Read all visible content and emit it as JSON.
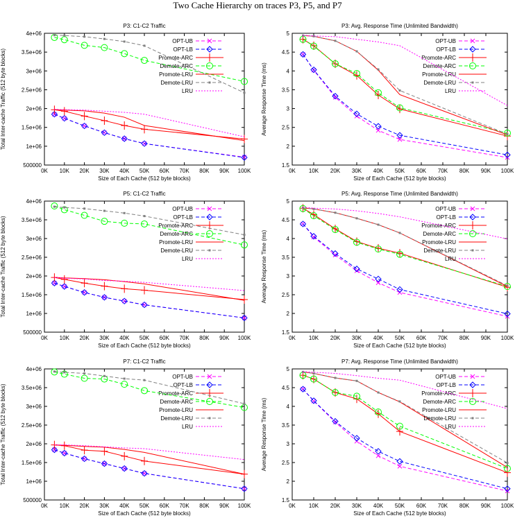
{
  "title": "Two Cache Hierarchy on traces P3, P5, and P7",
  "chart_data": [
    {
      "type": "line",
      "title": "P3: C1-C2 Traffic",
      "xlabel": "Size of Each Cache (512 byte blocks)",
      "ylabel": "Total Inter-cache Traffic (512 byte blocks)",
      "x": [
        5000,
        10000,
        20000,
        30000,
        40000,
        50000,
        100000
      ],
      "xlim": [
        0,
        100000
      ],
      "ylim": [
        500000,
        4000000
      ],
      "xticks": [
        0,
        10000,
        20000,
        30000,
        40000,
        50000,
        60000,
        70000,
        80000,
        90000,
        100000
      ],
      "xtick_labels": [
        "0K",
        "10K",
        "20K",
        "30K",
        "40K",
        "50K",
        "60K",
        "70K",
        "80K",
        "90K",
        "100K"
      ],
      "yticks": [
        500000,
        1000000,
        1500000,
        2000000,
        2500000,
        3000000,
        3500000,
        4000000
      ],
      "ytick_labels": [
        "500000",
        "1e+06",
        "1.5e+06",
        "2e+06",
        "2.5e+06",
        "3e+06",
        "3.5e+06",
        "4e+06"
      ],
      "legend": "top-right",
      "grid": false,
      "series": [
        {
          "name": "OPT-UB",
          "values": [
            1850000,
            1740000,
            1540000,
            1360000,
            1200000,
            1070000,
            710000
          ]
        },
        {
          "name": "OPT-LB",
          "values": [
            1850000,
            1740000,
            1540000,
            1360000,
            1200000,
            1070000,
            700000
          ]
        },
        {
          "name": "Promote-ARC",
          "values": [
            1970000,
            1930000,
            1800000,
            1680000,
            1550000,
            1450000,
            1190000
          ]
        },
        {
          "name": "Demote-ARC",
          "values": [
            3890000,
            3830000,
            3680000,
            3620000,
            3460000,
            3280000,
            2720000
          ]
        },
        {
          "name": "Promote-LRU",
          "values": [
            1970000,
            1960000,
            1940000,
            1880000,
            1770000,
            1550000,
            1150000
          ]
        },
        {
          "name": "Demote-LRU",
          "values": [
            3950000,
            3940000,
            3910000,
            3850000,
            3780000,
            3670000,
            2420000
          ]
        },
        {
          "name": "LRU",
          "values": [
            1980000,
            1970000,
            1960000,
            1930000,
            1900000,
            1850000,
            1250000
          ]
        }
      ]
    },
    {
      "type": "line",
      "title": "P3: Avg. Response Time (Unlimited Bandwidth)",
      "xlabel": "Size of Each Cache (512 byte blocks)",
      "ylabel": "Average Response Time (ms)",
      "x": [
        5000,
        10000,
        20000,
        30000,
        40000,
        50000,
        100000
      ],
      "xlim": [
        0,
        100000
      ],
      "ylim": [
        1.5,
        5
      ],
      "xticks": [
        0,
        10000,
        20000,
        30000,
        40000,
        50000,
        60000,
        70000,
        80000,
        90000,
        100000
      ],
      "xtick_labels": [
        "0K",
        "10K",
        "20K",
        "30K",
        "40K",
        "50K",
        "60K",
        "70K",
        "80K",
        "90K",
        "100K"
      ],
      "yticks": [
        1.5,
        2,
        2.5,
        3,
        3.5,
        4,
        4.5,
        5
      ],
      "ytick_labels": [
        "1.5",
        "2",
        "2.5",
        "3",
        "3.5",
        "4",
        "4.5",
        "5"
      ],
      "legend": "top-right",
      "grid": false,
      "series": [
        {
          "name": "OPT-UB",
          "values": [
            4.44,
            4.02,
            3.3,
            2.8,
            2.42,
            2.18,
            1.7
          ]
        },
        {
          "name": "OPT-LB",
          "values": [
            4.44,
            4.03,
            3.33,
            2.86,
            2.53,
            2.29,
            1.77
          ]
        },
        {
          "name": "Promote-ARC",
          "values": [
            4.84,
            4.67,
            4.19,
            3.88,
            3.36,
            2.99,
            2.27
          ]
        },
        {
          "name": "Demote-ARC",
          "values": [
            4.84,
            4.66,
            4.19,
            3.93,
            3.42,
            3.02,
            2.35
          ]
        },
        {
          "name": "Promote-LRU",
          "values": [
            4.94,
            4.92,
            4.8,
            4.52,
            4.02,
            3.37,
            2.3
          ]
        },
        {
          "name": "Demote-LRU",
          "values": [
            4.94,
            4.92,
            4.8,
            4.52,
            4.04,
            3.48,
            2.32
          ]
        },
        {
          "name": "LRU",
          "values": [
            4.95,
            4.93,
            4.91,
            4.84,
            4.77,
            4.67,
            3.08
          ]
        }
      ]
    },
    {
      "type": "line",
      "title": "P5: C1-C2 Traffic",
      "xlabel": "Size of Each Cache (512 byte blocks)",
      "ylabel": "Total Inter-cache Traffic (512 byte blocks)",
      "x": [
        5000,
        10000,
        20000,
        30000,
        40000,
        50000,
        100000
      ],
      "xlim": [
        0,
        100000
      ],
      "ylim": [
        500000,
        4000000
      ],
      "xticks": [
        0,
        10000,
        20000,
        30000,
        40000,
        50000,
        60000,
        70000,
        80000,
        90000,
        100000
      ],
      "xtick_labels": [
        "0K",
        "10K",
        "20K",
        "30K",
        "40K",
        "50K",
        "60K",
        "70K",
        "80K",
        "90K",
        "100K"
      ],
      "yticks": [
        500000,
        1000000,
        1500000,
        2000000,
        2500000,
        3000000,
        3500000,
        4000000
      ],
      "ytick_labels": [
        "500000",
        "1e+06",
        "1.5e+06",
        "2e+06",
        "2.5e+06",
        "3e+06",
        "3.5e+06",
        "4e+06"
      ],
      "legend": "top-right",
      "grid": false,
      "series": [
        {
          "name": "OPT-UB",
          "values": [
            1810000,
            1720000,
            1560000,
            1430000,
            1330000,
            1230000,
            880000
          ]
        },
        {
          "name": "OPT-LB",
          "values": [
            1810000,
            1720000,
            1560000,
            1430000,
            1330000,
            1230000,
            880000
          ]
        },
        {
          "name": "Promote-ARC",
          "values": [
            1960000,
            1910000,
            1810000,
            1730000,
            1660000,
            1620000,
            1370000
          ]
        },
        {
          "name": "Demote-ARC",
          "values": [
            3870000,
            3770000,
            3620000,
            3460000,
            3410000,
            3390000,
            2830000
          ]
        },
        {
          "name": "Promote-LRU",
          "values": [
            1960000,
            1950000,
            1930000,
            1900000,
            1850000,
            1790000,
            1350000
          ]
        },
        {
          "name": "Demote-LRU",
          "values": [
            3850000,
            3830000,
            3800000,
            3740000,
            3680000,
            3600000,
            3100000
          ]
        },
        {
          "name": "LRU",
          "values": [
            1960000,
            1940000,
            1920000,
            1880000,
            1860000,
            1830000,
            1610000
          ]
        }
      ]
    },
    {
      "type": "line",
      "title": "P5: Avg. Response Time (Unlimited Bandwidth)",
      "xlabel": "Size of Each Cache (512 byte blocks)",
      "ylabel": "Average Response Time (ms)",
      "x": [
        5000,
        10000,
        20000,
        30000,
        40000,
        50000,
        100000
      ],
      "xlim": [
        0,
        100000
      ],
      "ylim": [
        1.5,
        5
      ],
      "xticks": [
        0,
        10000,
        20000,
        30000,
        40000,
        50000,
        60000,
        70000,
        80000,
        90000,
        100000
      ],
      "xtick_labels": [
        "0K",
        "10K",
        "20K",
        "30K",
        "40K",
        "50K",
        "60K",
        "70K",
        "80K",
        "90K",
        "100K"
      ],
      "yticks": [
        1.5,
        2,
        2.5,
        3,
        3.5,
        4,
        4.5,
        5
      ],
      "ytick_labels": [
        "1.5",
        "2",
        "2.5",
        "3",
        "3.5",
        "4",
        "4.5",
        "5"
      ],
      "legend": "top-right",
      "grid": false,
      "series": [
        {
          "name": "OPT-UB",
          "values": [
            4.39,
            4.04,
            3.56,
            3.14,
            2.82,
            2.56,
            1.92
          ]
        },
        {
          "name": "OPT-LB",
          "values": [
            4.39,
            4.06,
            3.6,
            3.19,
            2.92,
            2.64,
            1.99
          ]
        },
        {
          "name": "Promote-ARC",
          "values": [
            4.81,
            4.64,
            4.26,
            3.92,
            3.74,
            3.61,
            2.7
          ]
        },
        {
          "name": "Demote-ARC",
          "values": [
            4.8,
            4.61,
            4.24,
            3.9,
            3.72,
            3.58,
            2.72
          ]
        },
        {
          "name": "Promote-LRU",
          "values": [
            4.82,
            4.79,
            4.69,
            4.54,
            4.37,
            4.15,
            2.72
          ]
        },
        {
          "name": "Demote-LRU",
          "values": [
            4.82,
            4.79,
            4.69,
            4.54,
            4.37,
            4.15,
            2.74
          ]
        },
        {
          "name": "LRU",
          "values": [
            4.84,
            4.81,
            4.79,
            4.74,
            4.67,
            4.58,
            3.99
          ]
        }
      ]
    },
    {
      "type": "line",
      "title": "P7: C1-C2 Traffic",
      "xlabel": "Size of Each Cache (512 byte blocks)",
      "ylabel": "Total Inter-cache Traffic (512 byte blocks)",
      "x": [
        5000,
        10000,
        20000,
        30000,
        40000,
        50000,
        100000
      ],
      "xlim": [
        0,
        100000
      ],
      "ylim": [
        500000,
        4000000
      ],
      "xticks": [
        0,
        10000,
        20000,
        30000,
        40000,
        50000,
        60000,
        70000,
        80000,
        90000,
        100000
      ],
      "xtick_labels": [
        "0K",
        "10K",
        "20K",
        "30K",
        "40K",
        "50K",
        "60K",
        "70K",
        "80K",
        "90K",
        "100K"
      ],
      "yticks": [
        500000,
        1000000,
        1500000,
        2000000,
        2500000,
        3000000,
        3500000,
        4000000
      ],
      "ytick_labels": [
        "500000",
        "1e+06",
        "1.5e+06",
        "2e+06",
        "2.5e+06",
        "3e+06",
        "3.5e+06",
        "4e+06"
      ],
      "legend": "top-right",
      "grid": false,
      "series": [
        {
          "name": "OPT-UB",
          "values": [
            1840000,
            1750000,
            1600000,
            1470000,
            1340000,
            1210000,
            800000
          ]
        },
        {
          "name": "OPT-LB",
          "values": [
            1840000,
            1750000,
            1600000,
            1470000,
            1340000,
            1210000,
            800000
          ]
        },
        {
          "name": "Promote-ARC",
          "values": [
            1970000,
            1950000,
            1830000,
            1800000,
            1670000,
            1540000,
            1190000
          ]
        },
        {
          "name": "Demote-ARC",
          "values": [
            3920000,
            3860000,
            3750000,
            3730000,
            3590000,
            3420000,
            2970000
          ]
        },
        {
          "name": "Promote-LRU",
          "values": [
            1970000,
            1960000,
            1930000,
            1910000,
            1850000,
            1770000,
            1190000
          ]
        },
        {
          "name": "Demote-LRU",
          "values": [
            3930000,
            3910000,
            3880000,
            3810000,
            3740000,
            3700000,
            3070000
          ]
        },
        {
          "name": "LRU",
          "values": [
            1970000,
            1970000,
            1950000,
            1920000,
            1890000,
            1870000,
            1580000
          ]
        }
      ]
    },
    {
      "type": "line",
      "title": "P7: Avg. Response Time (Unlimited Bandwidth)",
      "xlabel": "Size of Each Cache (512 byte blocks)",
      "ylabel": "Average Response Time (ms)",
      "x": [
        5000,
        10000,
        20000,
        30000,
        40000,
        50000,
        100000
      ],
      "xlim": [
        0,
        100000
      ],
      "ylim": [
        1.5,
        5
      ],
      "xticks": [
        0,
        10000,
        20000,
        30000,
        40000,
        50000,
        60000,
        70000,
        80000,
        90000,
        100000
      ],
      "xtick_labels": [
        "0K",
        "10K",
        "20K",
        "30K",
        "40K",
        "50K",
        "60K",
        "70K",
        "80K",
        "90K",
        "100K"
      ],
      "yticks": [
        1.5,
        2,
        2.5,
        3,
        3.5,
        4,
        4.5,
        5
      ],
      "ytick_labels": [
        "1.5",
        "2",
        "2.5",
        "3",
        "3.5",
        "4",
        "4.5",
        "5"
      ],
      "legend": "top-right",
      "grid": false,
      "series": [
        {
          "name": "OPT-UB",
          "values": [
            4.46,
            4.14,
            3.58,
            3.07,
            2.68,
            2.4,
            1.74
          ]
        },
        {
          "name": "OPT-LB",
          "values": [
            4.46,
            4.15,
            3.6,
            3.15,
            2.8,
            2.53,
            1.8
          ]
        },
        {
          "name": "Promote-ARC",
          "values": [
            4.83,
            4.73,
            4.37,
            4.2,
            3.8,
            3.33,
            2.23
          ]
        },
        {
          "name": "Demote-ARC",
          "values": [
            4.83,
            4.73,
            4.37,
            4.27,
            3.85,
            3.47,
            2.34
          ]
        },
        {
          "name": "Promote-LRU",
          "values": [
            4.92,
            4.88,
            4.76,
            4.68,
            4.37,
            4.12,
            2.37
          ]
        },
        {
          "name": "Demote-LRU",
          "values": [
            4.92,
            4.88,
            4.76,
            4.68,
            4.37,
            4.13,
            2.49
          ]
        },
        {
          "name": "LRU",
          "values": [
            4.93,
            4.91,
            4.88,
            4.82,
            4.75,
            4.7,
            3.94
          ]
        }
      ]
    }
  ],
  "series_styles": {
    "OPT-UB": {
      "color": "#ff00ff",
      "dash": "dashed",
      "marker": "x"
    },
    "OPT-LB": {
      "color": "#0000ff",
      "dash": "dashed",
      "marker": "diamond"
    },
    "Promote-ARC": {
      "color": "#ff0000",
      "dash": "solid",
      "marker": "plus"
    },
    "Demote-ARC": {
      "color": "#00ff00",
      "dash": "dashed",
      "marker": "circle"
    },
    "Promote-LRU": {
      "color": "#ff0000",
      "dash": "solid",
      "marker": "none"
    },
    "Demote-LRU": {
      "color": "#808080",
      "dash": "dashed",
      "marker": "square"
    },
    "LRU": {
      "color": "#ff00ff",
      "dash": "dotted",
      "marker": "none"
    }
  }
}
